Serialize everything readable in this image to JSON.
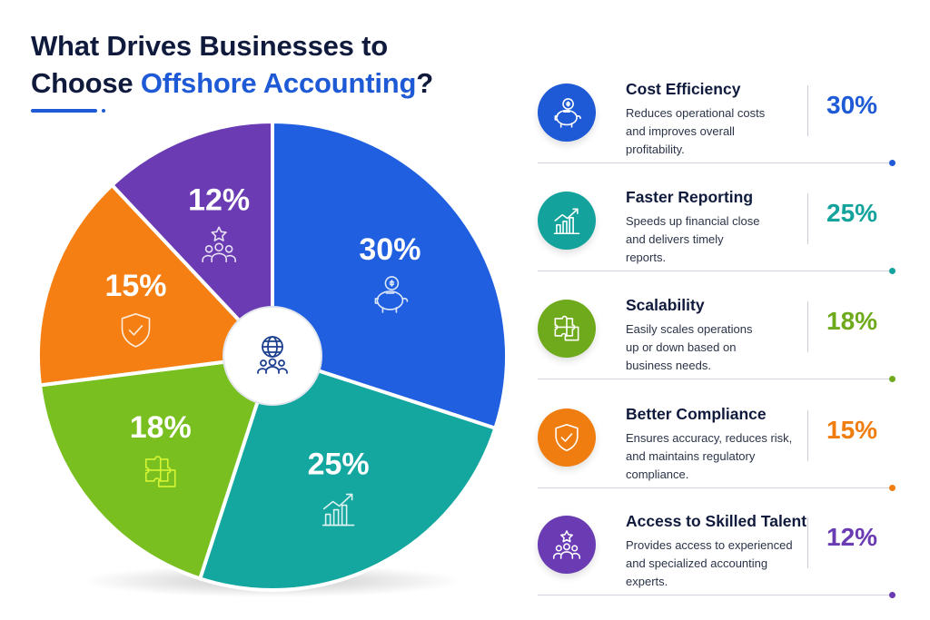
{
  "title": {
    "line1": "What Drives Businesses to",
    "line2_plain": "Choose ",
    "line2_accent": "Offshore Accounting",
    "line2_end": "?"
  },
  "chart_data": {
    "type": "pie",
    "slices": [
      {
        "label": "Cost Efficiency",
        "value": 30,
        "display": "30%",
        "color": "#1f5fe0",
        "icon": "piggy-bank-icon"
      },
      {
        "label": "Faster Reporting",
        "value": 25,
        "display": "25%",
        "color": "#14a7a0",
        "icon": "growth-chart-icon"
      },
      {
        "label": "Scalability",
        "value": 18,
        "display": "18%",
        "color": "#78bf1f",
        "icon": "puzzle-icon"
      },
      {
        "label": "Better Compliance",
        "value": 15,
        "display": "15%",
        "color": "#f57f12",
        "icon": "shield-check-icon"
      },
      {
        "label": "Access to Skilled Talent",
        "value": 12,
        "display": "12%",
        "color": "#6a3bb3",
        "icon": "team-star-icon"
      }
    ],
    "center_icon": "globe-team-icon"
  },
  "factors": [
    {
      "title": "Cost Efficiency",
      "lines": [
        "Reduces operational costs",
        "and improves overall",
        "profitability."
      ],
      "percent": "30%",
      "color": "#1f5ad6",
      "icon": "piggy-bank-icon"
    },
    {
      "title": "Faster Reporting",
      "lines": [
        "Speeds up financial close",
        "and delivers timely",
        "reports."
      ],
      "percent": "25%",
      "color": "#14a39c",
      "icon": "growth-chart-icon"
    },
    {
      "title": "Scalability",
      "lines": [
        "Easily scales operations",
        "up or down based on",
        "business needs."
      ],
      "percent": "18%",
      "color": "#6faa1c",
      "icon": "puzzle-icon"
    },
    {
      "title": "Better Compliance",
      "lines": [
        "Ensures accuracy, reduces risk,",
        "and maintains regulatory",
        "compliance."
      ],
      "percent": "15%",
      "color": "#f07d10",
      "icon": "shield-check-icon"
    },
    {
      "title": "Access to Skilled Talent",
      "lines": [
        "Provides access to experienced",
        "and specialized accounting",
        "experts."
      ],
      "percent": "12%",
      "color": "#6a3bb3",
      "icon": "team-star-icon"
    }
  ]
}
